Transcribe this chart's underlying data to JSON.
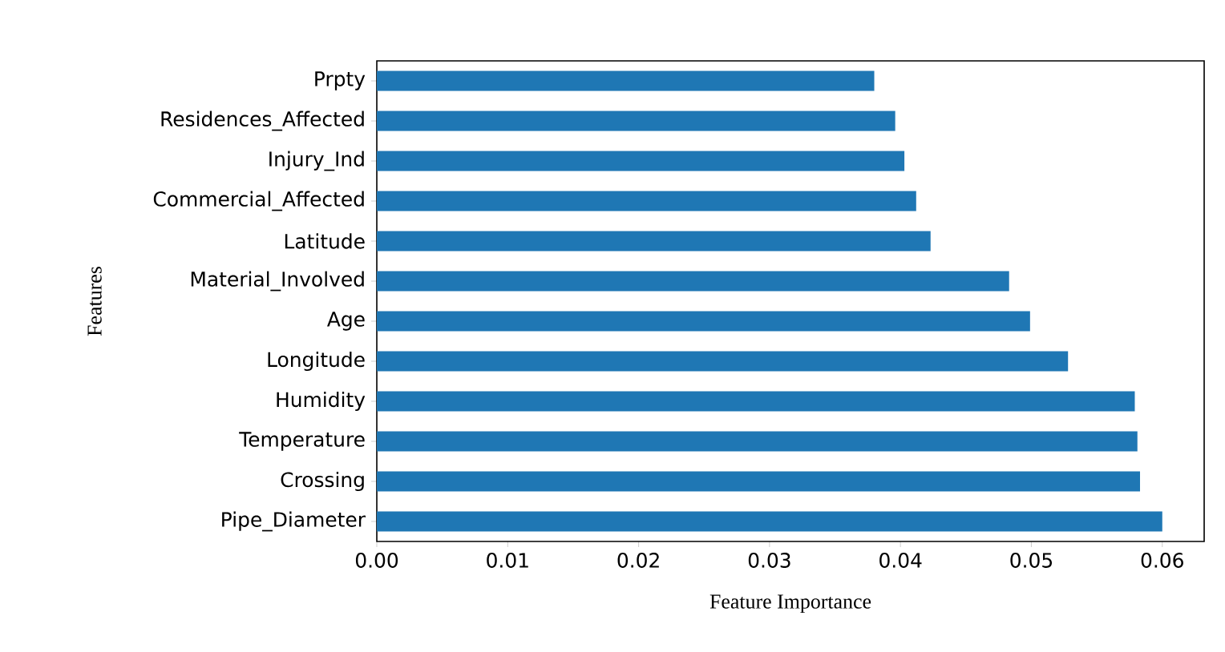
{
  "chart_data": {
    "type": "bar",
    "orientation": "horizontal",
    "xlabel": "Feature Importance",
    "ylabel": "Features",
    "categories": [
      "Prpty",
      "Residences_Affected",
      "Injury_Ind",
      "Commercial_Affected",
      "Latitude",
      "Material_Involved",
      "Age",
      "Longitude",
      "Humidity",
      "Temperature",
      "Crossing",
      "Pipe_Diameter"
    ],
    "values": [
      0.038,
      0.0396,
      0.0403,
      0.0412,
      0.0423,
      0.0483,
      0.0499,
      0.0528,
      0.0579,
      0.0581,
      0.0583,
      0.06
    ],
    "color": "#1f77b4",
    "xlim": [
      0,
      0.0632
    ],
    "xticks": [
      {
        "value": 0,
        "label": "0.00"
      },
      {
        "value": 0.01,
        "label": "0.01"
      },
      {
        "value": 0.02,
        "label": "0.02"
      },
      {
        "value": 0.03,
        "label": "0.03"
      },
      {
        "value": 0.04,
        "label": "0.04"
      },
      {
        "value": 0.05,
        "label": "0.05"
      },
      {
        "value": 0.06,
        "label": "0.06"
      }
    ],
    "grid": false
  }
}
